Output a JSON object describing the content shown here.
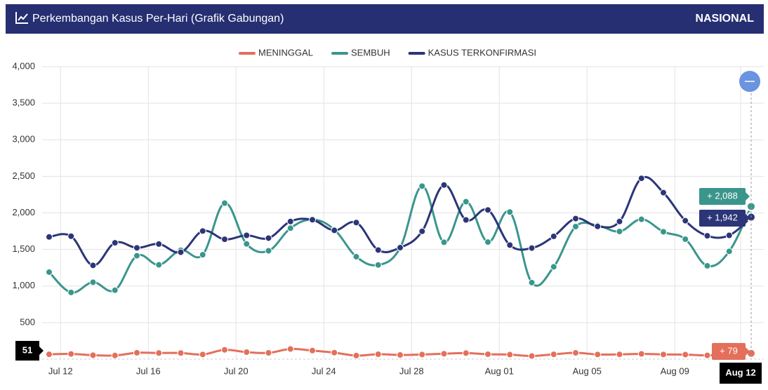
{
  "header": {
    "title": "Perkembangan Kasus Per-Hari (Grafik Gabungan)",
    "region": "NASIONAL"
  },
  "chart_data": {
    "type": "line",
    "categories": [
      null,
      "Jul 12",
      null,
      null,
      null,
      "Jul 16",
      null,
      null,
      null,
      "Jul 20",
      null,
      null,
      null,
      "Jul 24",
      null,
      null,
      null,
      "Jul 28",
      null,
      null,
      null,
      "Aug 01",
      null,
      null,
      null,
      "Aug 05",
      null,
      null,
      null,
      "Aug 09",
      null,
      null,
      "Aug 12"
    ],
    "series": [
      {
        "name": "MENINGGAL",
        "color": "#e46f5b",
        "values": [
          66,
          71,
          54,
          50,
          87,
          84,
          84,
          64,
          127,
          96,
          86,
          139,
          117,
          89,
          49,
          67,
          57,
          63,
          74,
          83,
          67,
          62,
          43,
          66,
          86,
          64,
          65,
          72,
          64,
          62,
          51,
          65,
          79
        ]
      },
      {
        "name": "SEMBUH",
        "color": "#3a968c",
        "values": [
          1190,
          912,
          1051,
          943,
          1414,
          1290,
          1489,
          1428,
          2133,
          1576,
          1482,
          1791,
          1909,
          1772,
          1401,
          1288,
          1523,
          2366,
          1598,
          2153,
          1601,
          2012,
          1047,
          1262,
          1813,
          1828,
          1746,
          1912,
          1742,
          1640,
          1276,
          1474,
          2088
        ]
      },
      {
        "name": "KASUS TERKONFIRMASI",
        "color": "#2c3577",
        "values": [
          1671,
          1681,
          1282,
          1591,
          1522,
          1574,
          1462,
          1752,
          1639,
          1693,
          1655,
          1882,
          1906,
          1761,
          1868,
          1492,
          1525,
          1748,
          2381,
          1904,
          2040,
          1560,
          1519,
          1679,
          1922,
          1815,
          1882,
          2473,
          2277,
          1893,
          1687,
          1693,
          1942
        ]
      }
    ],
    "ylim": [
      0,
      4000
    ],
    "yticks": [
      500,
      {
        "value": 1000,
        "label": "1,000"
      },
      {
        "value": 1500,
        "label": "1,500"
      },
      {
        "value": 2000,
        "label": "2,000"
      },
      {
        "value": 2500,
        "label": "2,500"
      },
      {
        "value": 3000,
        "label": "3,000"
      },
      {
        "value": 3500,
        "label": "3,500"
      },
      {
        "value": 4000,
        "label": "4,000"
      }
    ],
    "grid": true,
    "legend": "top",
    "tooltips": [
      "+ 79",
      "+ 2,088",
      "+ 1,942"
    ],
    "crosshair_label": "51"
  }
}
